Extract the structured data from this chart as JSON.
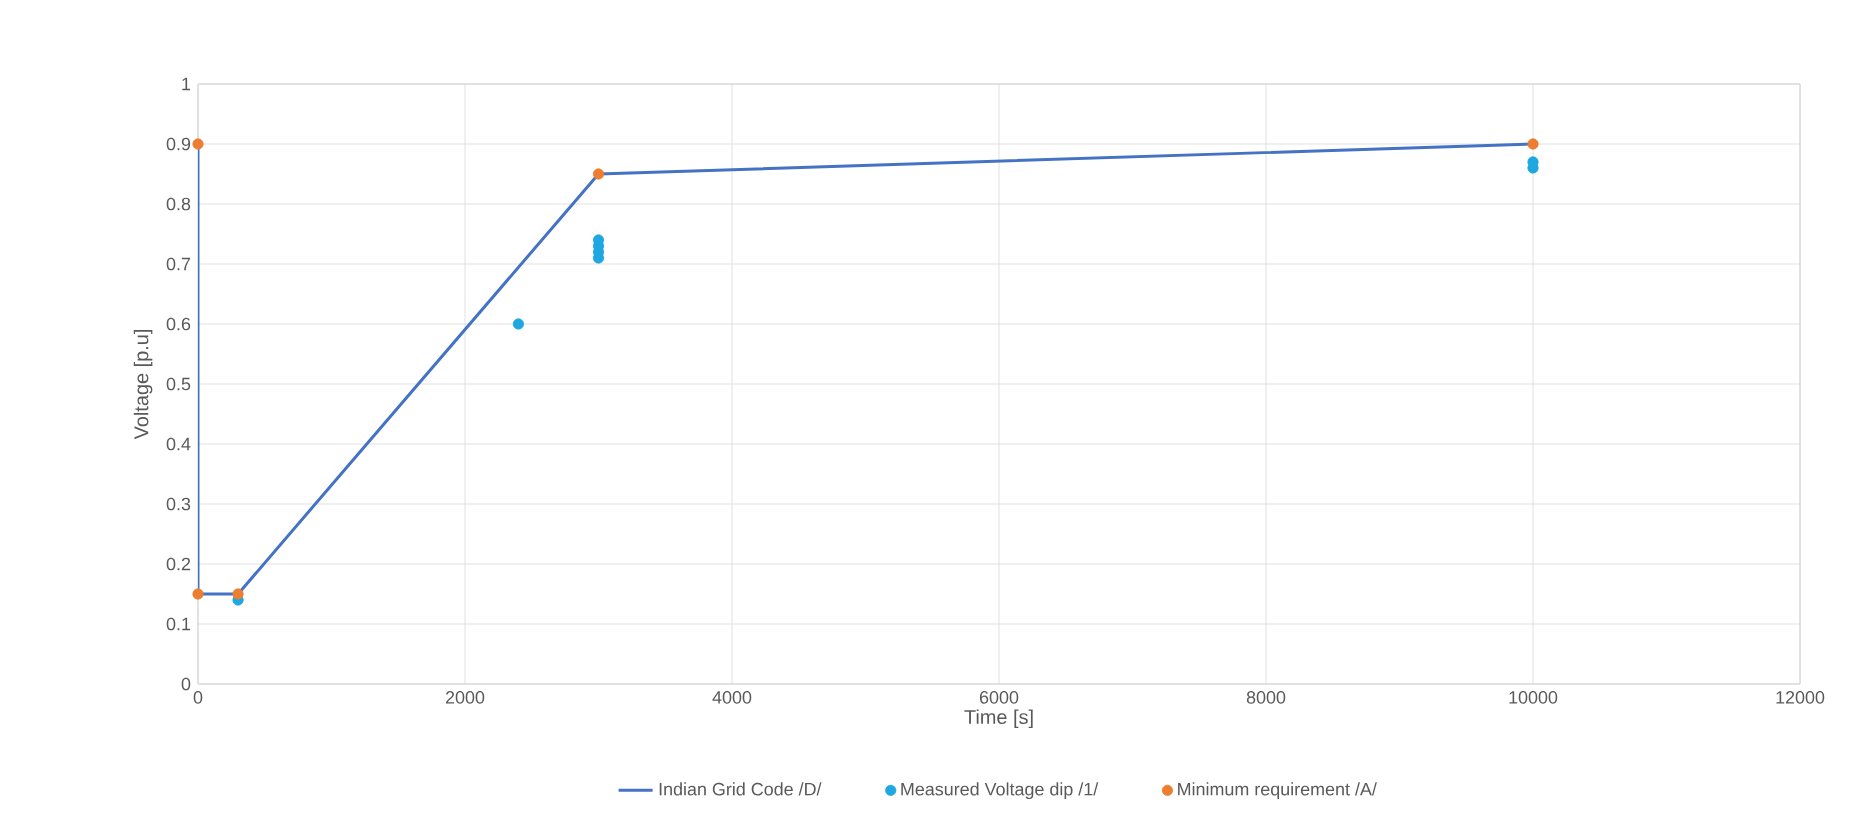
{
  "chart_data": {
    "type": "line",
    "xlabel": "Time [s]",
    "ylabel": "Voltage [p.u]",
    "xlim": [
      0,
      12000
    ],
    "xticks": [
      0,
      2000,
      4000,
      6000,
      8000,
      10000,
      12000
    ],
    "ylim": [
      0,
      1
    ],
    "yticks": [
      0,
      0.1,
      0.2,
      0.3,
      0.4,
      0.5,
      0.6,
      0.7,
      0.8,
      0.9,
      1
    ],
    "grid": true,
    "legend": "bottom",
    "series": [
      {
        "name": "Indian Grid Code /D/",
        "color": "#4472c4",
        "marker": "none",
        "x": [
          0,
          0,
          300,
          3000,
          10000
        ],
        "values": [
          0.9,
          0.15,
          0.15,
          0.85,
          0.9
        ]
      },
      {
        "name": "Measured Voltage dip /1/",
        "type": "scatter",
        "color": "#1ea7e1",
        "marker": "circle",
        "x": [
          300,
          2400,
          3000,
          3000,
          3000,
          3000,
          10000,
          10000
        ],
        "values": [
          0.14,
          0.6,
          0.71,
          0.72,
          0.73,
          0.74,
          0.86,
          0.87
        ]
      },
      {
        "name": "Minimum requirement /A/",
        "type": "scatter",
        "color": "#ed7d31",
        "marker": "circle",
        "x": [
          0,
          0,
          300,
          3000,
          10000
        ],
        "values": [
          0.9,
          0.15,
          0.15,
          0.85,
          0.9
        ]
      }
    ]
  }
}
